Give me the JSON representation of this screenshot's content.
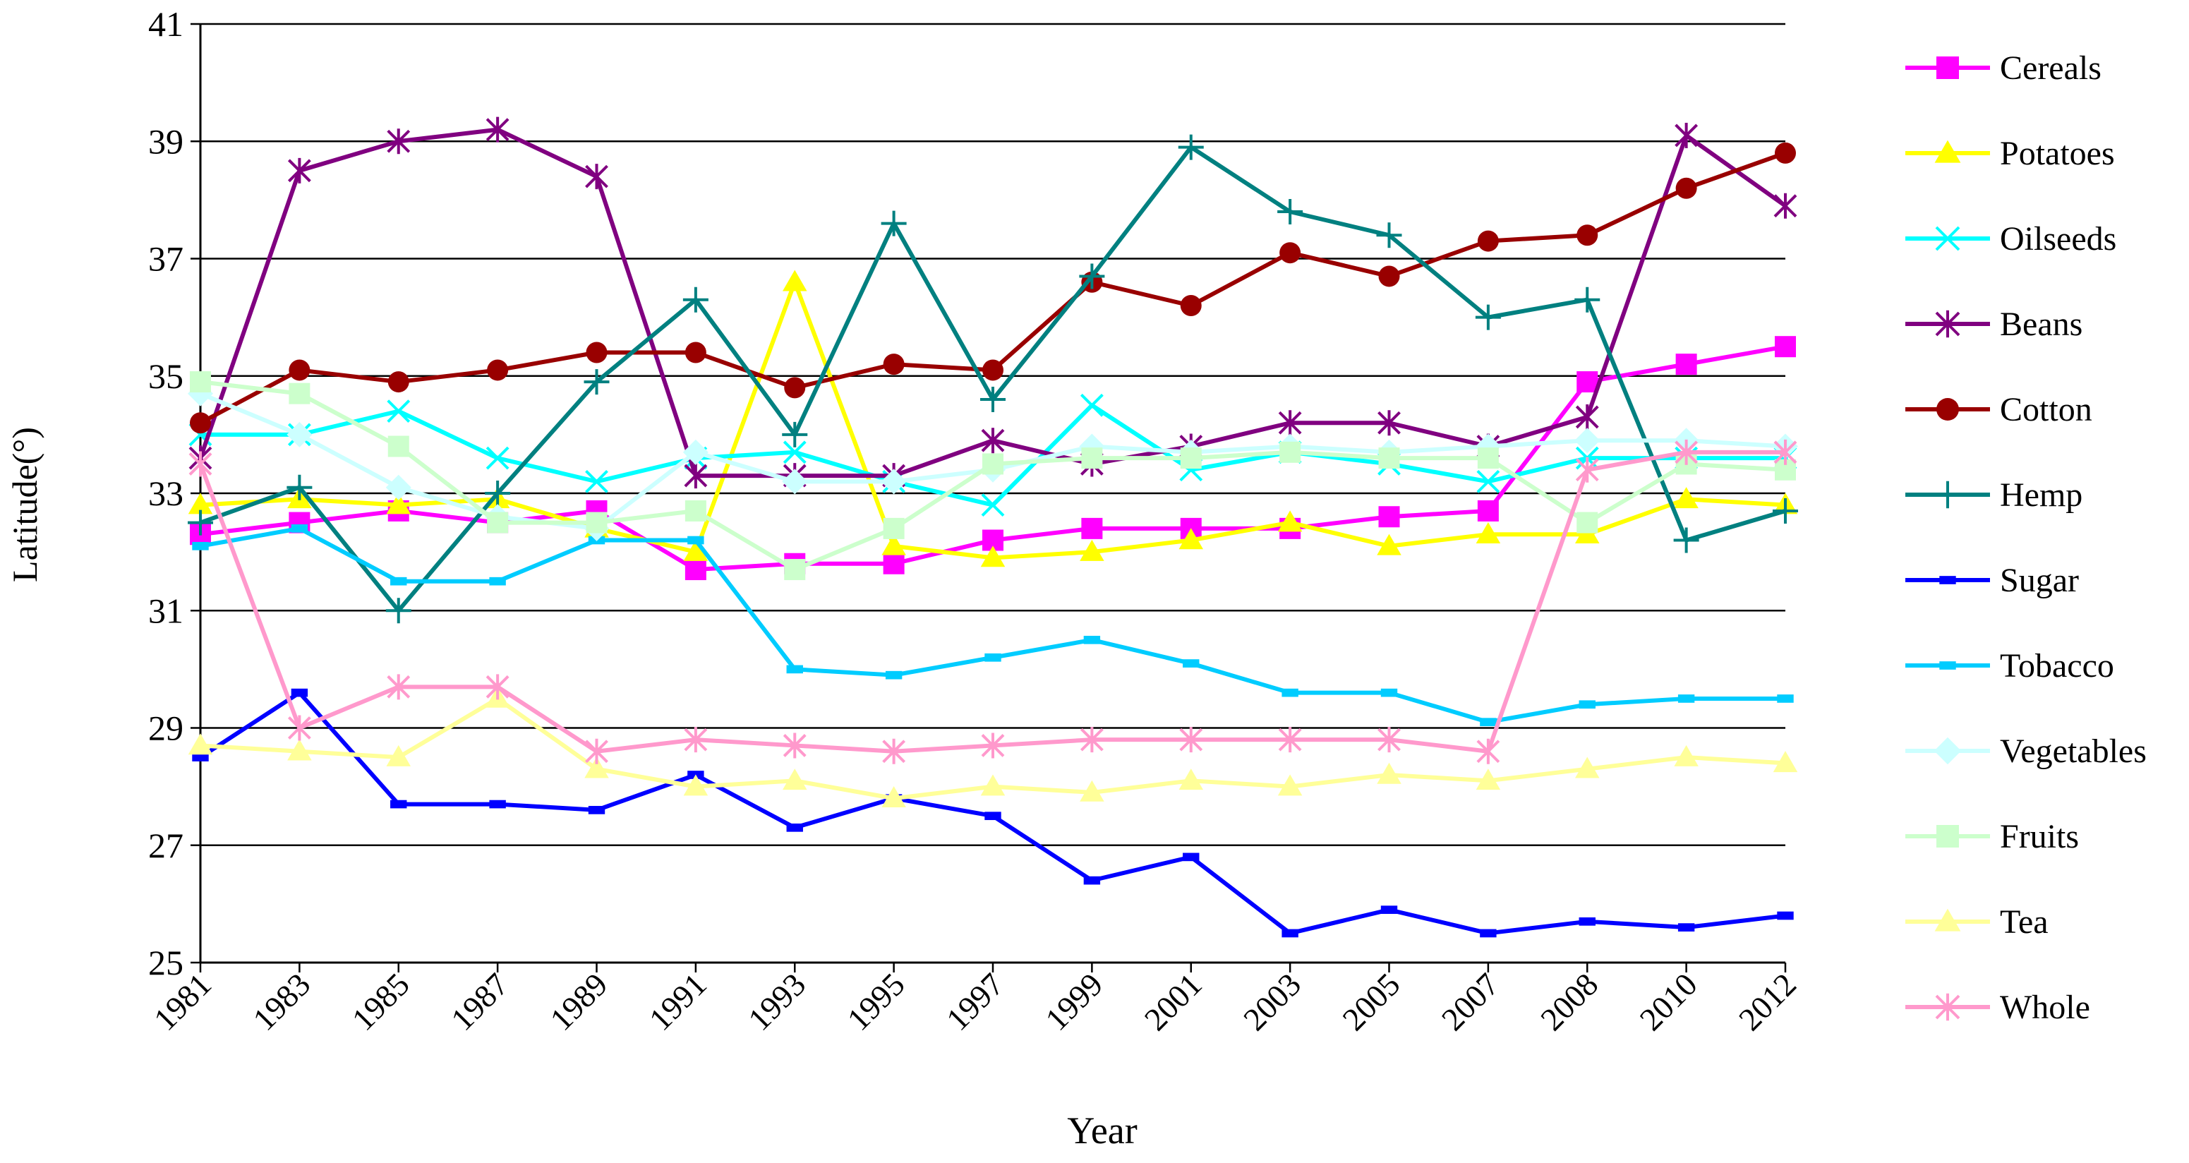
{
  "chart_data": {
    "type": "line",
    "title": "",
    "xlabel": "Year",
    "ylabel": "Latitude(°)",
    "categories": [
      "1981",
      "1983",
      "1985",
      "1987",
      "1989",
      "1991",
      "1993",
      "1995",
      "1997",
      "1999",
      "2001",
      "2003",
      "2005",
      "2007",
      "2008",
      "2010",
      "2012"
    ],
    "ylim": [
      25,
      41
    ],
    "yticks": [
      25,
      27,
      29,
      31,
      33,
      35,
      37,
      39,
      41
    ],
    "grid": true,
    "legend_position": "right",
    "series": [
      {
        "name": "Cereals",
        "color": "#FF00FF",
        "marker": "square",
        "values": [
          32.3,
          32.5,
          32.7,
          32.5,
          32.7,
          31.7,
          31.8,
          31.8,
          32.2,
          32.4,
          32.4,
          32.4,
          32.6,
          32.7,
          34.9,
          35.2,
          35.5
        ]
      },
      {
        "name": "Potatoes",
        "color": "#FFFF00",
        "marker": "triangle",
        "values": [
          32.8,
          32.9,
          32.8,
          32.9,
          32.4,
          32.0,
          36.6,
          32.1,
          31.9,
          32.0,
          32.2,
          32.5,
          32.1,
          32.3,
          32.3,
          32.9,
          32.8
        ]
      },
      {
        "name": "Oilseeds",
        "color": "#00FFFF",
        "marker": "x",
        "values": [
          34.0,
          34.0,
          34.4,
          33.6,
          33.2,
          33.6,
          33.7,
          33.2,
          32.8,
          34.5,
          33.4,
          33.7,
          33.5,
          33.2,
          33.6,
          33.6,
          33.6
        ]
      },
      {
        "name": "Beans",
        "color": "#800080",
        "marker": "asterisk",
        "values": [
          33.6,
          38.5,
          39.0,
          39.2,
          38.4,
          33.3,
          33.3,
          33.3,
          33.9,
          33.5,
          33.8,
          34.2,
          34.2,
          33.8,
          34.3,
          39.1,
          37.9
        ]
      },
      {
        "name": "Cotton",
        "color": "#990000",
        "marker": "circle",
        "values": [
          34.2,
          35.1,
          34.9,
          35.1,
          35.4,
          35.4,
          34.8,
          35.2,
          35.1,
          36.6,
          36.2,
          37.1,
          36.7,
          37.3,
          37.4,
          38.2,
          38.8
        ]
      },
      {
        "name": "Hemp",
        "color": "#008080",
        "marker": "plus",
        "values": [
          32.5,
          33.1,
          31.0,
          33.0,
          34.9,
          36.3,
          34.0,
          37.6,
          34.6,
          36.7,
          38.9,
          37.8,
          37.4,
          36.0,
          36.3,
          32.2,
          32.7
        ]
      },
      {
        "name": "Sugar",
        "color": "#0000FF",
        "marker": "dash",
        "values": [
          28.5,
          29.6,
          27.7,
          27.7,
          27.6,
          28.2,
          27.3,
          27.8,
          27.5,
          26.4,
          26.8,
          25.5,
          25.9,
          25.5,
          25.7,
          25.6,
          25.8
        ]
      },
      {
        "name": "Tobacco",
        "color": "#00CCFF",
        "marker": "dash",
        "values": [
          32.1,
          32.4,
          31.5,
          31.5,
          32.2,
          32.2,
          30.0,
          29.9,
          30.2,
          30.5,
          30.1,
          29.6,
          29.6,
          29.1,
          29.4,
          29.5,
          29.5
        ]
      },
      {
        "name": "Vegetables",
        "color": "#CCFFFF",
        "marker": "diamond",
        "values": [
          34.7,
          34.0,
          33.1,
          32.6,
          32.4,
          33.7,
          33.2,
          33.2,
          33.4,
          33.8,
          33.7,
          33.8,
          33.7,
          33.8,
          33.9,
          33.9,
          33.8
        ]
      },
      {
        "name": "Fruits",
        "color": "#CCFFCC",
        "marker": "square",
        "values": [
          34.9,
          34.7,
          33.8,
          32.5,
          32.5,
          32.7,
          31.7,
          32.4,
          33.5,
          33.6,
          33.6,
          33.7,
          33.6,
          33.6,
          32.5,
          33.5,
          33.4
        ]
      },
      {
        "name": "Tea",
        "color": "#FFFF99",
        "marker": "triangle",
        "values": [
          28.7,
          28.6,
          28.5,
          29.5,
          28.3,
          28.0,
          28.1,
          27.8,
          28.0,
          27.9,
          28.1,
          28.0,
          28.2,
          28.1,
          28.3,
          28.5,
          28.4
        ]
      },
      {
        "name": "Whole",
        "color": "#FF99CC",
        "marker": "asterisk",
        "values": [
          33.5,
          29.0,
          29.7,
          29.7,
          28.6,
          28.8,
          28.7,
          28.6,
          28.7,
          28.8,
          28.8,
          28.8,
          28.8,
          28.6,
          33.4,
          33.7,
          33.7
        ]
      }
    ]
  }
}
